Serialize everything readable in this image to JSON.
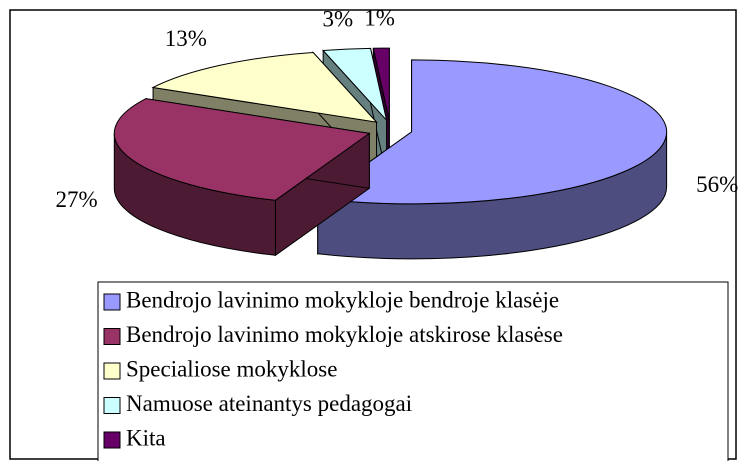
{
  "chart_data": {
    "type": "pie",
    "categories": [
      "Bendrojo lavinimo mokykloje bendroje klasėje",
      "Bendrojo lavinimo mokykloje atskirose klasėse",
      "Specialiose mokyklose",
      "Namuose ateinantys pedagogai",
      "Kita"
    ],
    "values": [
      56,
      27,
      13,
      3,
      1
    ],
    "value_labels": [
      "56%",
      "27%",
      "13%",
      "3%",
      "1%"
    ],
    "colors": [
      "#9999ff",
      "#993366",
      "#ffffcc",
      "#ccffff",
      "#660066"
    ],
    "legend": "bottom"
  }
}
